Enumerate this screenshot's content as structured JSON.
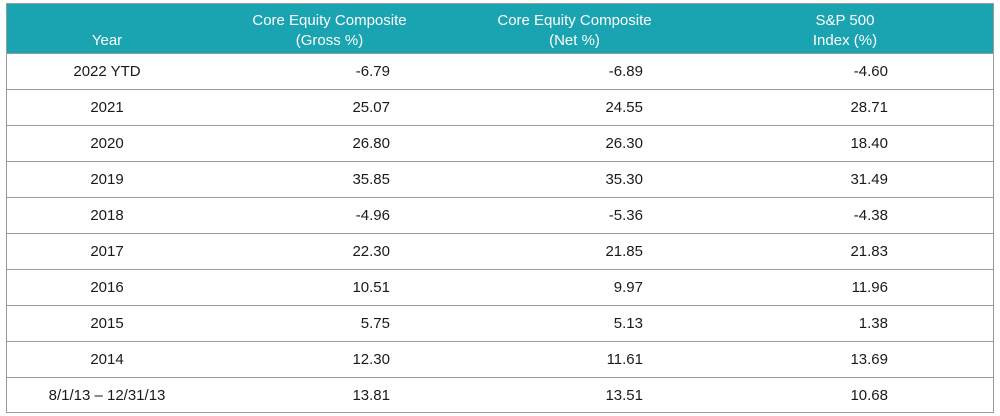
{
  "table": {
    "headers": {
      "year": "Year",
      "gross_line1": "Core Equity Composite",
      "gross_line2": "(Gross %)",
      "net_line1": "Core Equity Composite",
      "net_line2": "(Net %)",
      "sp_line1": "S&P 500",
      "sp_line2": "Index (%)"
    },
    "rows": [
      {
        "year": "2022 YTD",
        "gross": "-6.79",
        "net": "-6.89",
        "sp": "-4.60"
      },
      {
        "year": "2021",
        "gross": "25.07",
        "net": "24.55",
        "sp": "28.71"
      },
      {
        "year": "2020",
        "gross": "26.80",
        "net": "26.30",
        "sp": "18.40"
      },
      {
        "year": "2019",
        "gross": "35.85",
        "net": "35.30",
        "sp": "31.49"
      },
      {
        "year": "2018",
        "gross": "-4.96",
        "net": "-5.36",
        "sp": "-4.38"
      },
      {
        "year": "2017",
        "gross": "22.30",
        "net": "21.85",
        "sp": "21.83"
      },
      {
        "year": "2016",
        "gross": "10.51",
        "net": "9.97",
        "sp": "11.96"
      },
      {
        "year": "2015",
        "gross": "5.75",
        "net": "5.13",
        "sp": "1.38"
      },
      {
        "year": "2014",
        "gross": "12.30",
        "net": "11.61",
        "sp": "13.69"
      },
      {
        "year": "8/1/13 – 12/31/13",
        "gross": "13.81",
        "net": "13.51",
        "sp": "10.68"
      }
    ],
    "colors": {
      "header_bg": "#1aa3b0",
      "header_text": "#ffffff",
      "border": "#9a9a9a"
    }
  }
}
